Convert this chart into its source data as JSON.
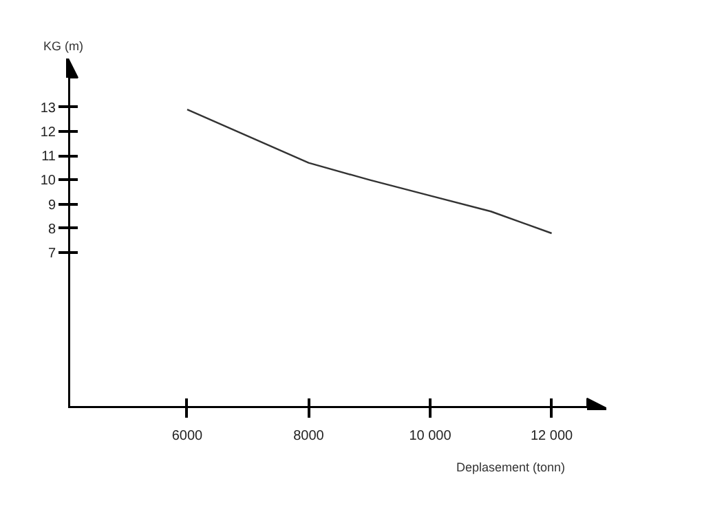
{
  "chart_data": {
    "type": "line",
    "xlabel": "Deplasement (tonn)",
    "ylabel": "KG (m)",
    "x": [
      6000,
      7000,
      8000,
      9000,
      10000,
      11000,
      12000
    ],
    "series": [
      {
        "color": "#333333",
        "values": [
          12.9,
          11.8,
          10.7,
          10.0,
          9.35,
          8.7,
          7.8
        ]
      }
    ],
    "xlim": [
      4040,
      12900
    ],
    "ylim": [
      0.6,
      15.0
    ],
    "xticks": [
      6000,
      8000,
      {
        "value": 10000,
        "label": "10 000"
      },
      {
        "value": 12000,
        "label": "12 000"
      }
    ],
    "yticks": [
      7,
      8,
      9,
      10,
      11,
      12,
      13
    ],
    "grid": false,
    "marker": "none",
    "line_style": "solid"
  }
}
